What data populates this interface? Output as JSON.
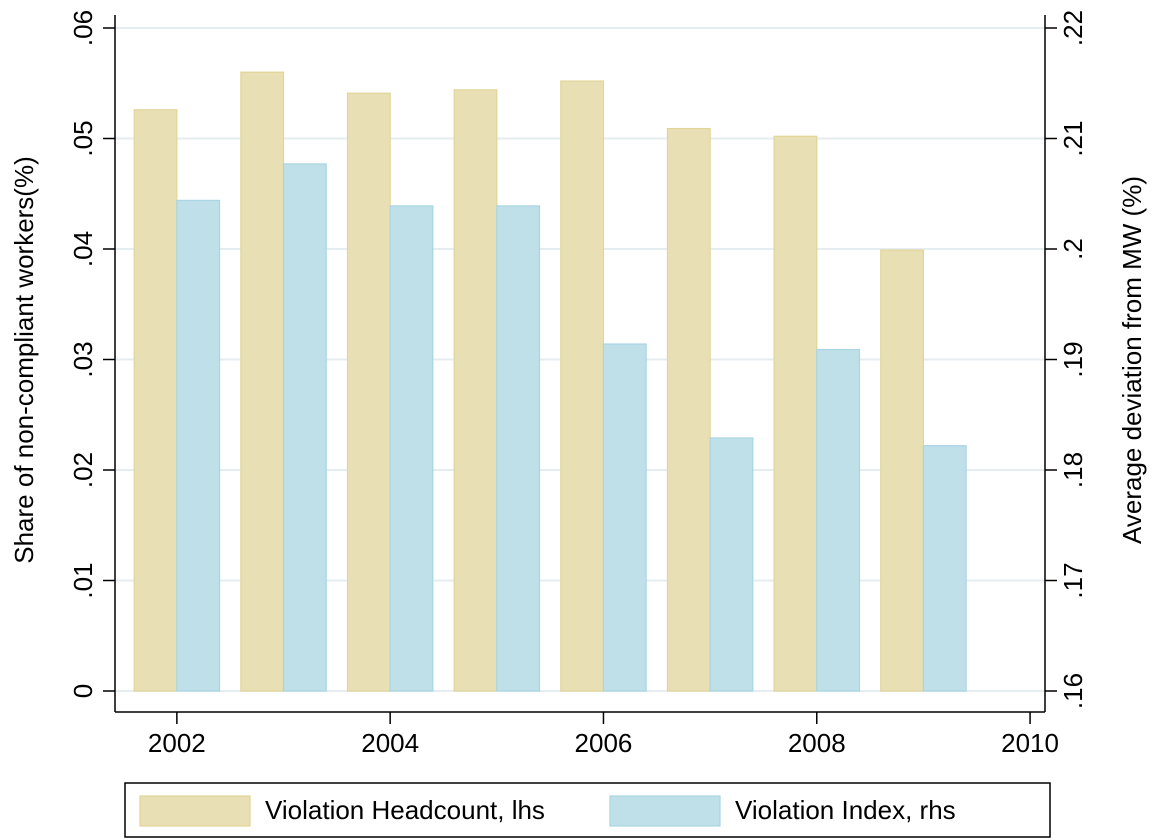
{
  "chart_data": {
    "type": "bar",
    "x": [
      2002,
      2003,
      2004,
      2005,
      2006,
      2007,
      2008,
      2009
    ],
    "series": [
      {
        "name": "Violation Headcount, lhs",
        "color": "#e9dfb4",
        "values": [
          0.0526,
          0.056,
          0.0541,
          0.0544,
          0.0552,
          0.0509,
          0.0502,
          0.0399
        ]
      },
      {
        "name": "Violation Index, rhs",
        "color": "#bfe0e8",
        "axis": "y2",
        "values": [
          0.2044,
          0.2077,
          0.2039,
          0.2039,
          0.1914,
          0.1829,
          0.1909,
          0.1822
        ]
      }
    ],
    "y_label": "Share of non-compliant workers(%)",
    "y2_label": "Average deviation from MW (%)",
    "xlim": [
      2001.42,
      2010.14
    ],
    "xticks": [
      2002,
      2004,
      2006,
      2008,
      2010
    ],
    "ylim": [
      0,
      0.06
    ],
    "yticks": [
      0,
      {
        "value": 0.01,
        "label": ".01"
      },
      {
        "value": 0.02,
        "label": ".02"
      },
      {
        "value": 0.03,
        "label": ".03"
      },
      {
        "value": 0.04,
        "label": ".04"
      },
      {
        "value": 0.05,
        "label": ".05"
      },
      {
        "value": 0.06,
        "label": ".06"
      }
    ],
    "y2lim": [
      0.16,
      0.22
    ],
    "y2ticks": [
      {
        "value": 0.16,
        "label": ".16"
      },
      {
        "value": 0.17,
        "label": ".17"
      },
      {
        "value": 0.18,
        "label": ".18"
      },
      {
        "value": 0.19,
        "label": ".19"
      },
      {
        "value": 0.2,
        "label": ".2"
      },
      {
        "value": 0.21,
        "label": ".21"
      },
      {
        "value": 0.22,
        "label": ".22"
      }
    ],
    "grid": true,
    "legend": "bottom"
  }
}
